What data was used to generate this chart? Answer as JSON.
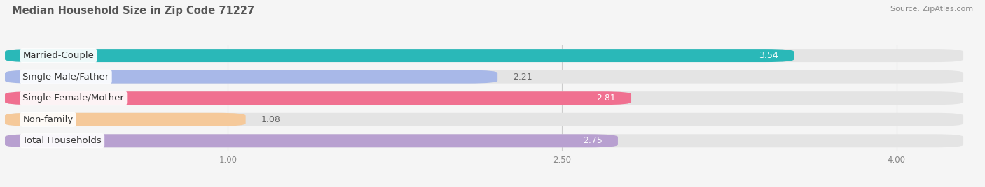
{
  "title": "Median Household Size in Zip Code 71227",
  "source": "Source: ZipAtlas.com",
  "categories": [
    "Married-Couple",
    "Single Male/Father",
    "Single Female/Mother",
    "Non-family",
    "Total Households"
  ],
  "values": [
    3.54,
    2.21,
    2.81,
    1.08,
    2.75
  ],
  "bar_colors": [
    "#2ab8b8",
    "#a8b8e8",
    "#f07090",
    "#f5c99a",
    "#b8a0d0"
  ],
  "xlim": [
    0,
    4.3
  ],
  "xticks": [
    1.0,
    2.5,
    4.0
  ],
  "bar_height": 0.62,
  "background_color": "#f5f5f5",
  "bar_bg_color": "#e4e4e4",
  "title_fontsize": 10.5,
  "source_fontsize": 8,
  "label_fontsize": 9.5,
  "value_fontsize": 9
}
